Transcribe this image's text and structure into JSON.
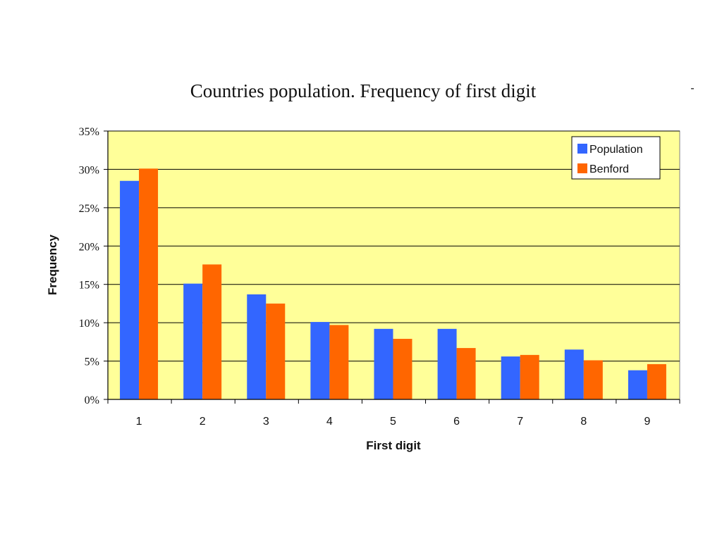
{
  "colors": {
    "plot_background": "#ffff99",
    "population": "#3366ff",
    "benford": "#ff6600",
    "gridline": "#000000"
  },
  "chart_data": {
    "type": "bar",
    "title": "Countries population.  Frequency of first digit",
    "xlabel": "First digit",
    "ylabel": "Frequency",
    "categories": [
      "1",
      "2",
      "3",
      "4",
      "5",
      "6",
      "7",
      "8",
      "9"
    ],
    "series": [
      {
        "name": "Population",
        "values": [
          28.5,
          15.1,
          13.7,
          10.1,
          9.2,
          9.2,
          5.6,
          6.5,
          3.8
        ]
      },
      {
        "name": "Benford",
        "values": [
          30.1,
          17.6,
          12.5,
          9.7,
          7.9,
          6.7,
          5.8,
          5.1,
          4.6
        ]
      }
    ],
    "ylim": [
      0,
      35
    ],
    "yticks": [
      "0%",
      "5%",
      "10%",
      "15%",
      "20%",
      "25%",
      "30%",
      "35%"
    ],
    "grid": true,
    "legend_position": "top-right"
  },
  "stray_mark": "-"
}
